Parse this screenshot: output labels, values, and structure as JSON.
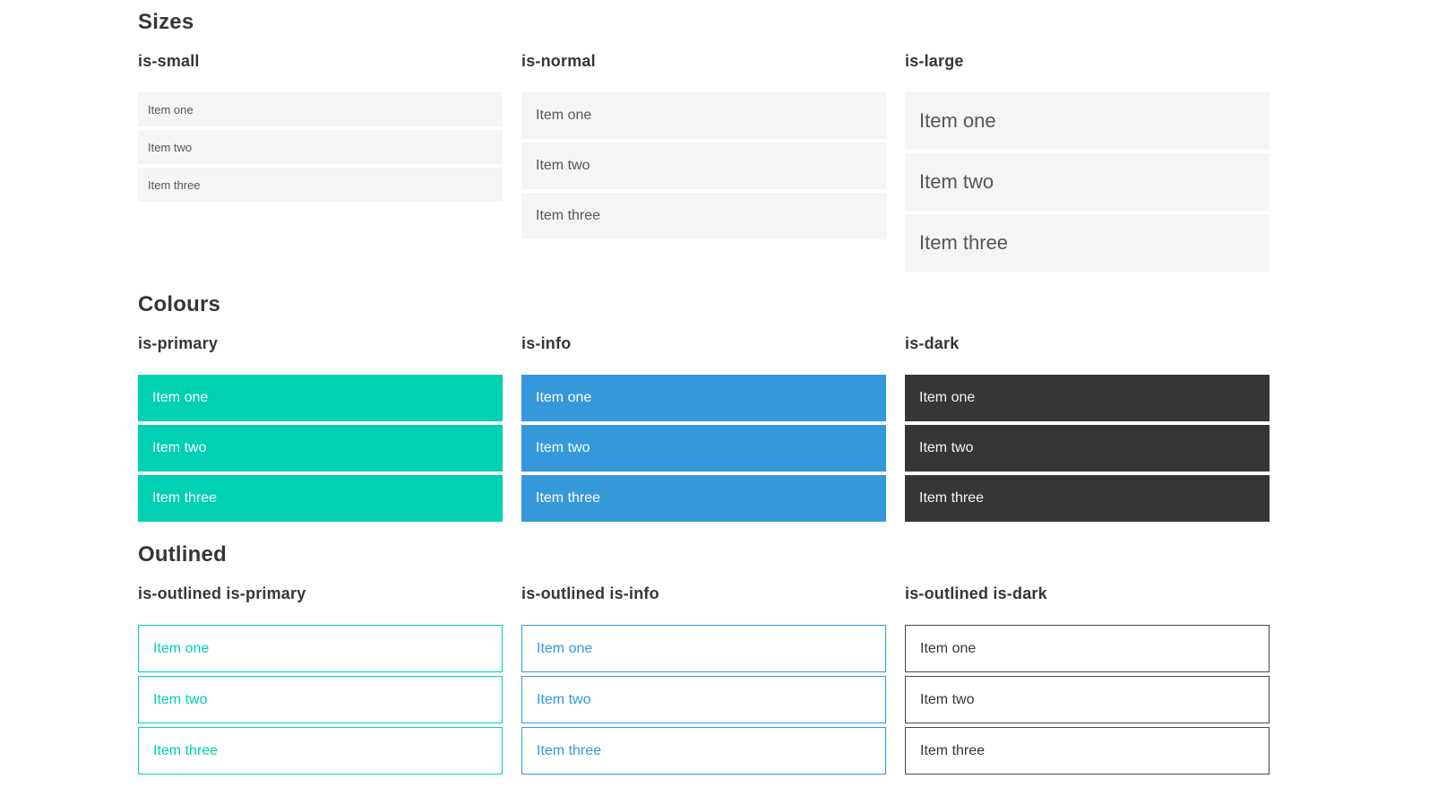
{
  "sections": [
    {
      "title": "Sizes",
      "groups": [
        {
          "label": "is-small",
          "items": [
            "Item one",
            "Item two",
            "Item three"
          ]
        },
        {
          "label": "is-normal",
          "items": [
            "Item one",
            "Item two",
            "Item three"
          ]
        },
        {
          "label": "is-large",
          "items": [
            "Item one",
            "Item two",
            "Item three"
          ]
        }
      ]
    },
    {
      "title": "Colours",
      "groups": [
        {
          "label": "is-primary",
          "items": [
            "Item one",
            "Item two",
            "Item three"
          ]
        },
        {
          "label": "is-info",
          "items": [
            "Item one",
            "Item two",
            "Item three"
          ]
        },
        {
          "label": "is-dark",
          "items": [
            "Item one",
            "Item two",
            "Item three"
          ]
        }
      ]
    },
    {
      "title": "Outlined",
      "groups": [
        {
          "label": "is-outlined is-primary",
          "items": [
            "Item one",
            "Item two",
            "Item three"
          ]
        },
        {
          "label": "is-outlined is-info",
          "items": [
            "Item one",
            "Item two",
            "Item three"
          ]
        },
        {
          "label": "is-outlined is-dark",
          "items": [
            "Item one",
            "Item two",
            "Item three"
          ]
        }
      ]
    }
  ],
  "colors": {
    "primary": "#00d1b2",
    "info": "#3498db",
    "dark": "#363636",
    "list_item_background": "#f5f5f5",
    "heading_text": "#363636",
    "list_item_text": "#555555",
    "dark_item_text": "#f5f5f5",
    "outlined_dark_border": "#4a4a4a"
  }
}
